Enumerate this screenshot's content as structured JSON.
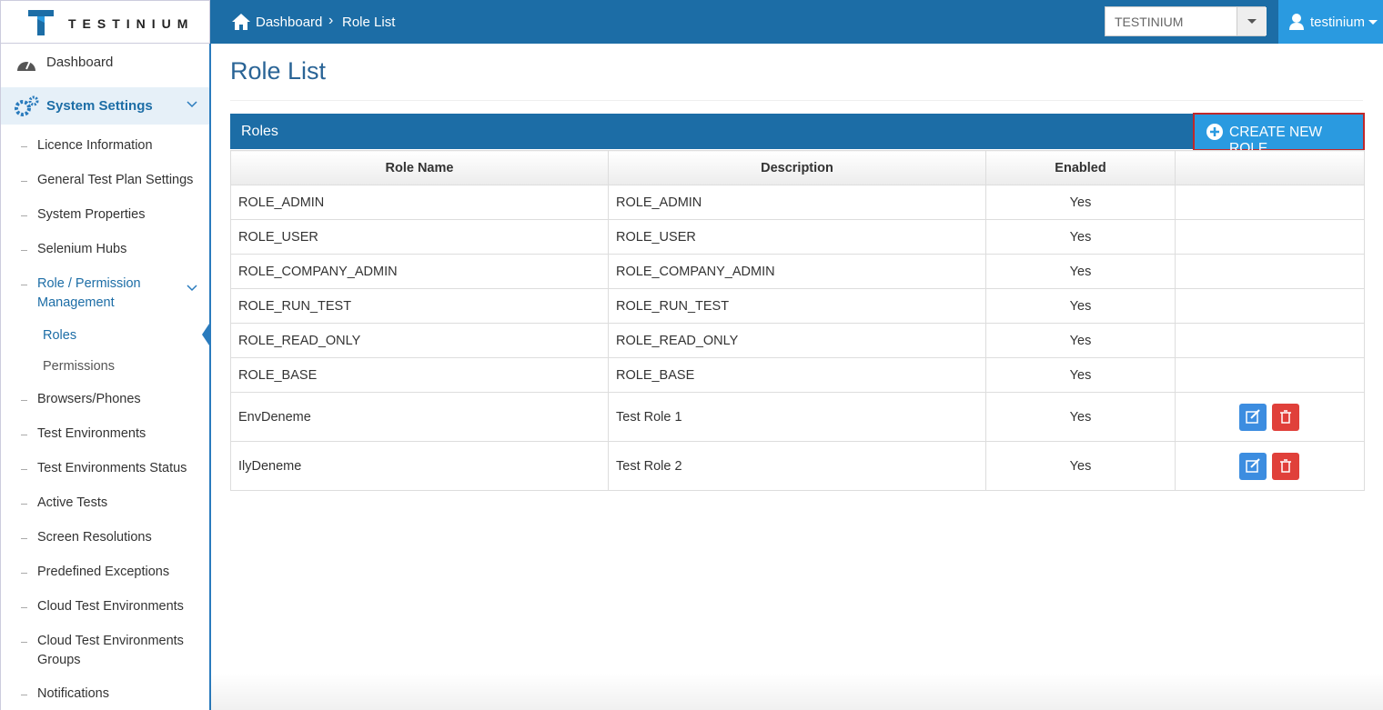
{
  "header": {
    "logo": "TESTINIUM",
    "breadcrumb": [
      "Dashboard",
      "Role List"
    ],
    "organization": "TESTINIUM",
    "user": "testinium"
  },
  "sidebar": {
    "dashboard": "Dashboard",
    "section": "System Settings",
    "items": [
      "Licence Information",
      "General Test Plan Settings",
      "System Properties",
      "Selenium Hubs",
      "Role / Permission Management",
      "Browsers/Phones",
      "Test Environments",
      "Test Environments Status",
      "Active Tests",
      "Screen Resolutions",
      "Predefined Exceptions",
      "Cloud Test Environments",
      "Cloud Test Environments Groups",
      "Notifications"
    ],
    "subitems": [
      "Roles",
      "Permissions"
    ]
  },
  "page": {
    "title": "Role List"
  },
  "panel": {
    "title": "Roles",
    "button": "CREATE NEW ROLE"
  },
  "table": {
    "columns": [
      "Role Name",
      "Description",
      "Enabled"
    ],
    "rows": [
      [
        "ROLE_ADMIN",
        "ROLE_ADMIN",
        "Yes"
      ],
      [
        "ROLE_USER",
        "ROLE_USER",
        "Yes"
      ],
      [
        "ROLE_COMPANY_ADMIN",
        "ROLE_COMPANY_ADMIN",
        "Yes"
      ],
      [
        "ROLE_RUN_TEST",
        "ROLE_RUN_TEST",
        "Yes"
      ],
      [
        "ROLE_READ_ONLY",
        "ROLE_READ_ONLY",
        "Yes"
      ],
      [
        "ROLE_BASE",
        "ROLE_BASE",
        "Yes"
      ],
      [
        "EnvDeneme",
        "Test Role 1",
        "Yes"
      ],
      [
        "IlyDeneme",
        "Test Role 2",
        "Yes"
      ]
    ]
  }
}
